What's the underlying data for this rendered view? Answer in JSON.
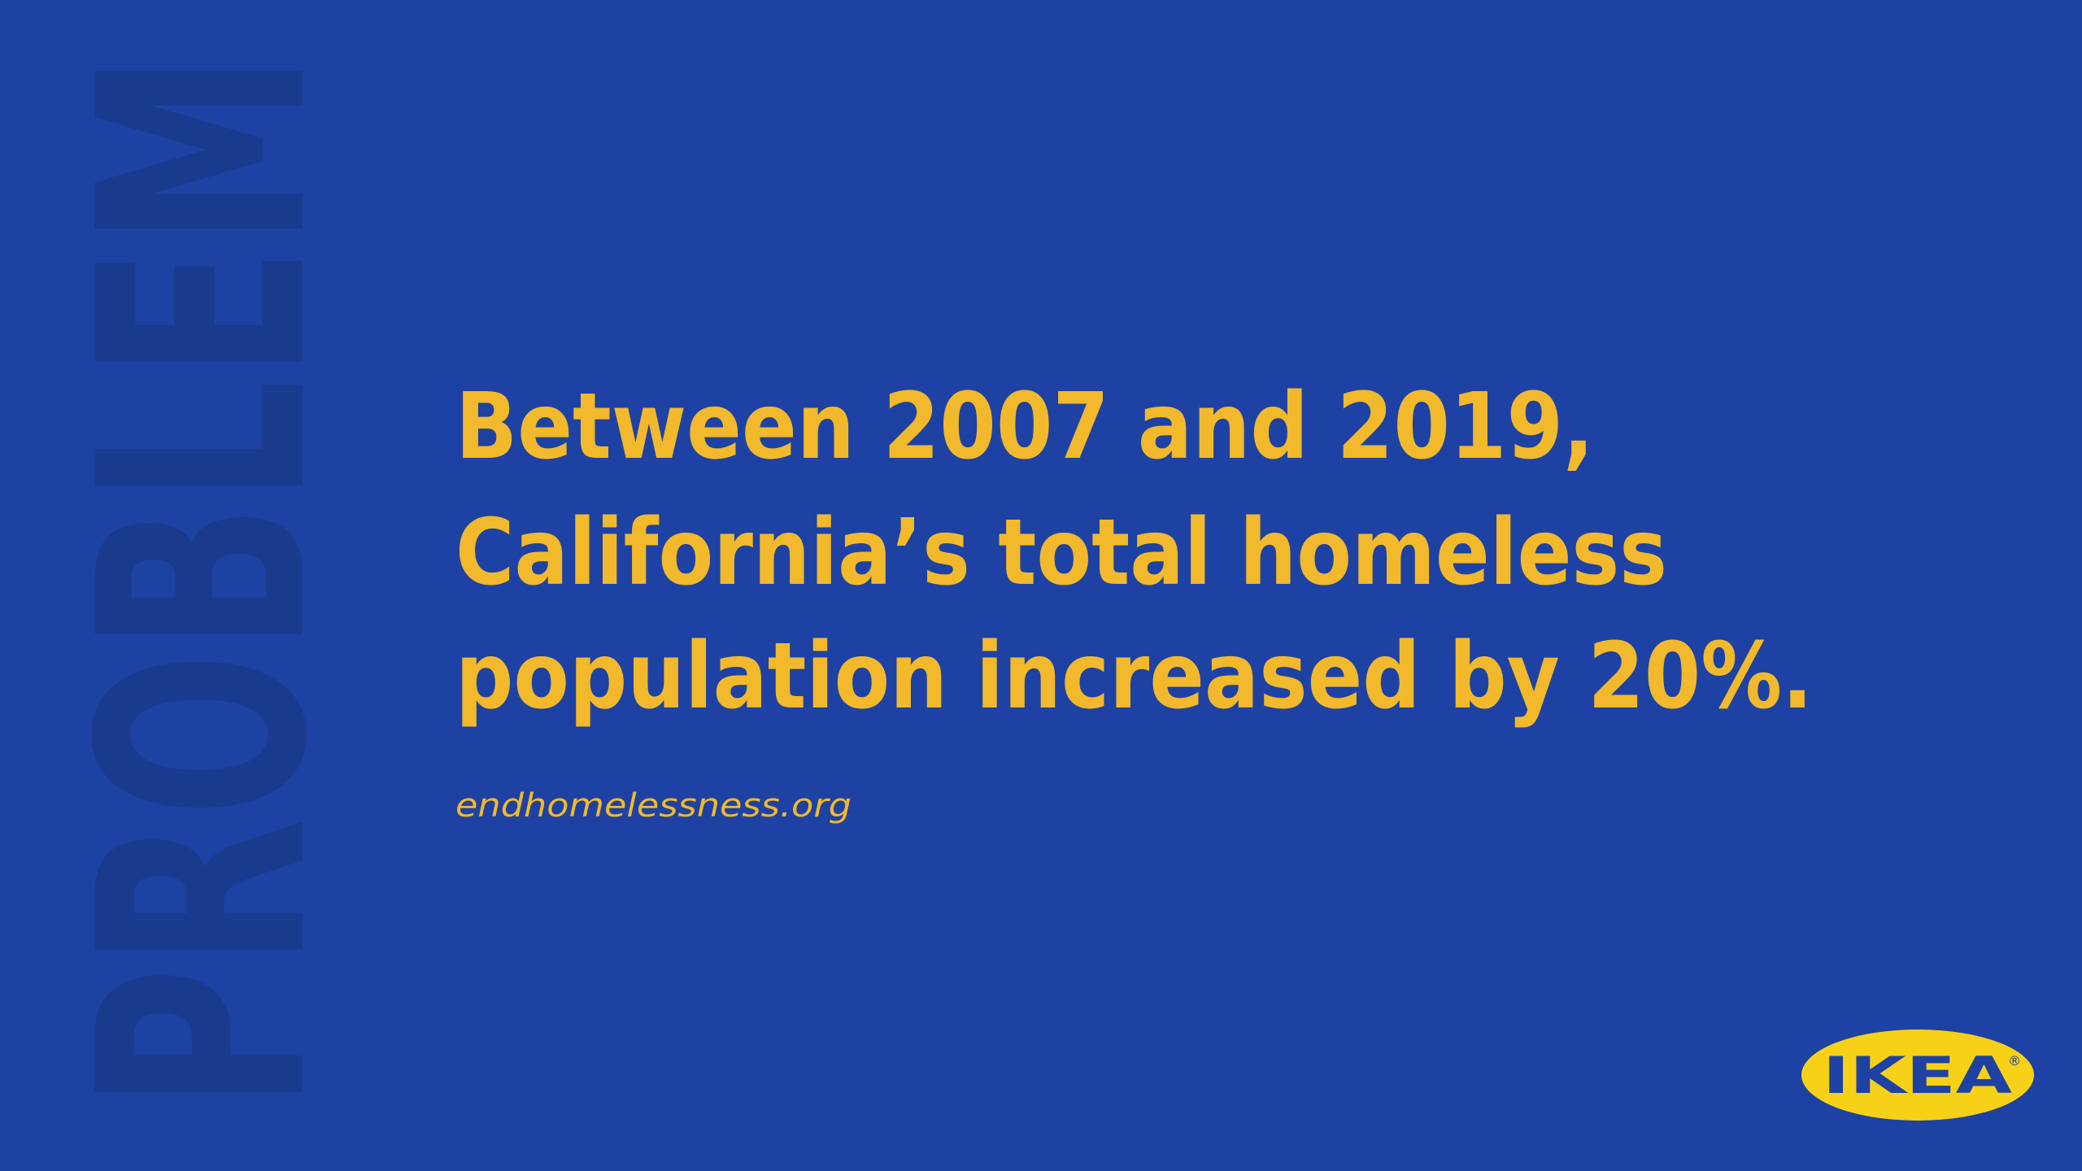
{
  "label": "PROBLEM",
  "headline": [
    "Between 2007 and 2019,",
    "California’s total homeless",
    "population increased by 20%."
  ],
  "source": "endhomelessness.org",
  "logo": {
    "text": "IKEA",
    "mark": "®"
  }
}
